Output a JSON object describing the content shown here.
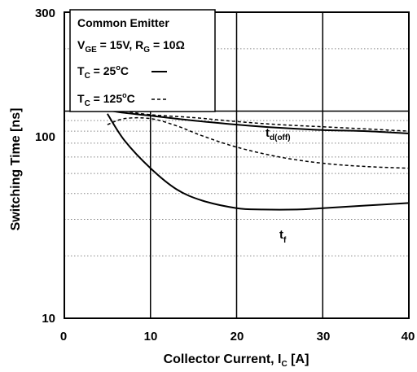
{
  "chart_data": {
    "type": "line",
    "xlabel": {
      "main": "Collector Current, I",
      "sub": "C",
      "unit": " [A]"
    },
    "ylabel": "Switching Time [ns]",
    "xlim": [
      0,
      40
    ],
    "ylim": [
      10,
      300
    ],
    "yscale": "log",
    "x_ticks": [
      {
        "value": 0,
        "label": "0"
      },
      {
        "value": 10,
        "label": "10"
      },
      {
        "value": 20,
        "label": "20"
      },
      {
        "value": 30,
        "label": "30"
      },
      {
        "value": 40,
        "label": "40"
      }
    ],
    "y_ticks": [
      {
        "value": 10,
        "label": "10"
      },
      {
        "value": 100,
        "label": "100"
      },
      {
        "value": 300,
        "label": "300"
      }
    ],
    "grid": "major-solid, minor-dotted",
    "legend": {
      "placement": "top-left",
      "title": "Common Emitter",
      "cond_vge_prefix": "V",
      "cond_vge_sub": "GE",
      "cond_vge_value": " = 15V, R",
      "cond_rg_sub": "G",
      "cond_rg_value": " = 10Ω",
      "entry_25_prefix": "T",
      "entry_25_sub": "C",
      "entry_25_value": " = 25",
      "entry_25_sup": "o",
      "entry_25_unit": "C",
      "entry_125_prefix": "T",
      "entry_125_sub": "C",
      "entry_125_value": " = 125",
      "entry_125_sup": "o",
      "entry_125_unit": "C"
    },
    "curve_labels": {
      "td_off_main": "t",
      "td_off_sub": "d(off)",
      "tf_main": "t",
      "tf_sub": "f"
    },
    "series": [
      {
        "label": "td(off) 25C",
        "style": "solid",
        "x": [
          5,
          7,
          10,
          15,
          20,
          25,
          30,
          35,
          40
        ],
        "y": [
          101,
          98,
          95,
          90,
          86,
          83,
          81,
          80,
          78
        ]
      },
      {
        "label": "td(off) 125C",
        "style": "dashed",
        "x": [
          5,
          7,
          10,
          15,
          20,
          25,
          30,
          35,
          40
        ],
        "y": [
          104,
          100,
          96,
          93,
          89,
          86,
          84,
          82,
          80
        ]
      },
      {
        "label": "tf 25C",
        "style": "solid",
        "x": [
          5,
          7,
          10,
          13,
          16,
          20,
          23,
          27,
          30,
          35,
          40
        ],
        "y": [
          97,
          72,
          53,
          42,
          37,
          34,
          33.5,
          33.5,
          34,
          35,
          36
        ]
      },
      {
        "label": "tf 125C",
        "style": "dashed",
        "x": [
          5,
          7,
          10,
          13,
          16,
          20,
          25,
          30,
          35,
          40
        ],
        "y": [
          86,
          92,
          92,
          85,
          76,
          67,
          60,
          56,
          54,
          53
        ]
      }
    ]
  }
}
